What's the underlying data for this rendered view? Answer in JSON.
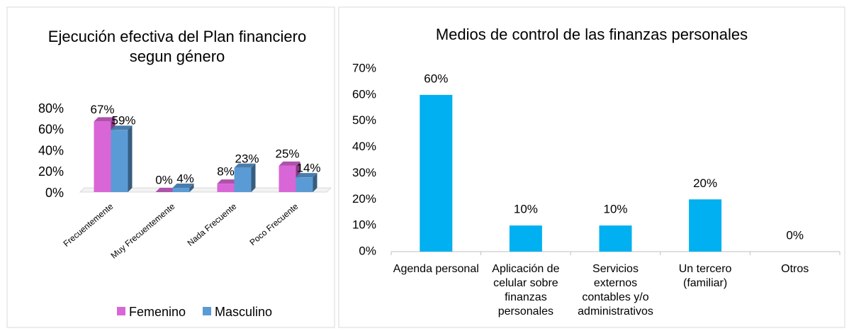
{
  "chart_data": [
    {
      "type": "bar3d",
      "title": "Ejecución efectiva del Plan financiero segun género",
      "categories": [
        "Frecuentemente",
        "Muy Frecuentemente",
        "Nada Frecuente",
        "Poco Frecuente"
      ],
      "series": [
        {
          "name": "Femenino",
          "color": "#d966d6",
          "values": [
            67,
            0,
            8,
            25
          ],
          "value_labels": [
            "67%",
            "0%",
            "8%",
            "25%"
          ]
        },
        {
          "name": "Masculino",
          "color": "#5b9bd5",
          "values": [
            59,
            4,
            23,
            14
          ],
          "value_labels": [
            "59%",
            "4%",
            "23%",
            "14%"
          ]
        }
      ],
      "ylim": [
        0,
        80
      ],
      "yticks": [
        {
          "value": 0,
          "label": "0%"
        },
        {
          "value": 20,
          "label": "20%"
        },
        {
          "value": 40,
          "label": "40%"
        },
        {
          "value": 60,
          "label": "60%"
        },
        {
          "value": 80,
          "label": "80%"
        }
      ],
      "grid": false,
      "legend": "bottom"
    },
    {
      "type": "bar",
      "title": "Medios de control de las finanzas personales",
      "categories": [
        "Agenda personal",
        "Aplicación de celular sobre finanzas personales",
        "Servicios externos contables y/o administrativos",
        "Un tercero (familiar)",
        "Otros"
      ],
      "values": [
        60,
        10,
        10,
        20,
        0
      ],
      "value_labels": [
        "60%",
        "10%",
        "10%",
        "20%",
        "0%"
      ],
      "color": "#00b0f0",
      "ylim": [
        0,
        70
      ],
      "yticks": [
        {
          "value": 0,
          "label": "0%"
        },
        {
          "value": 10,
          "label": "10%"
        },
        {
          "value": 20,
          "label": "20%"
        },
        {
          "value": 30,
          "label": "30%"
        },
        {
          "value": 40,
          "label": "40%"
        },
        {
          "value": 50,
          "label": "50%"
        },
        {
          "value": 60,
          "label": "60%"
        },
        {
          "value": 70,
          "label": "70%"
        }
      ],
      "grid": false
    }
  ]
}
